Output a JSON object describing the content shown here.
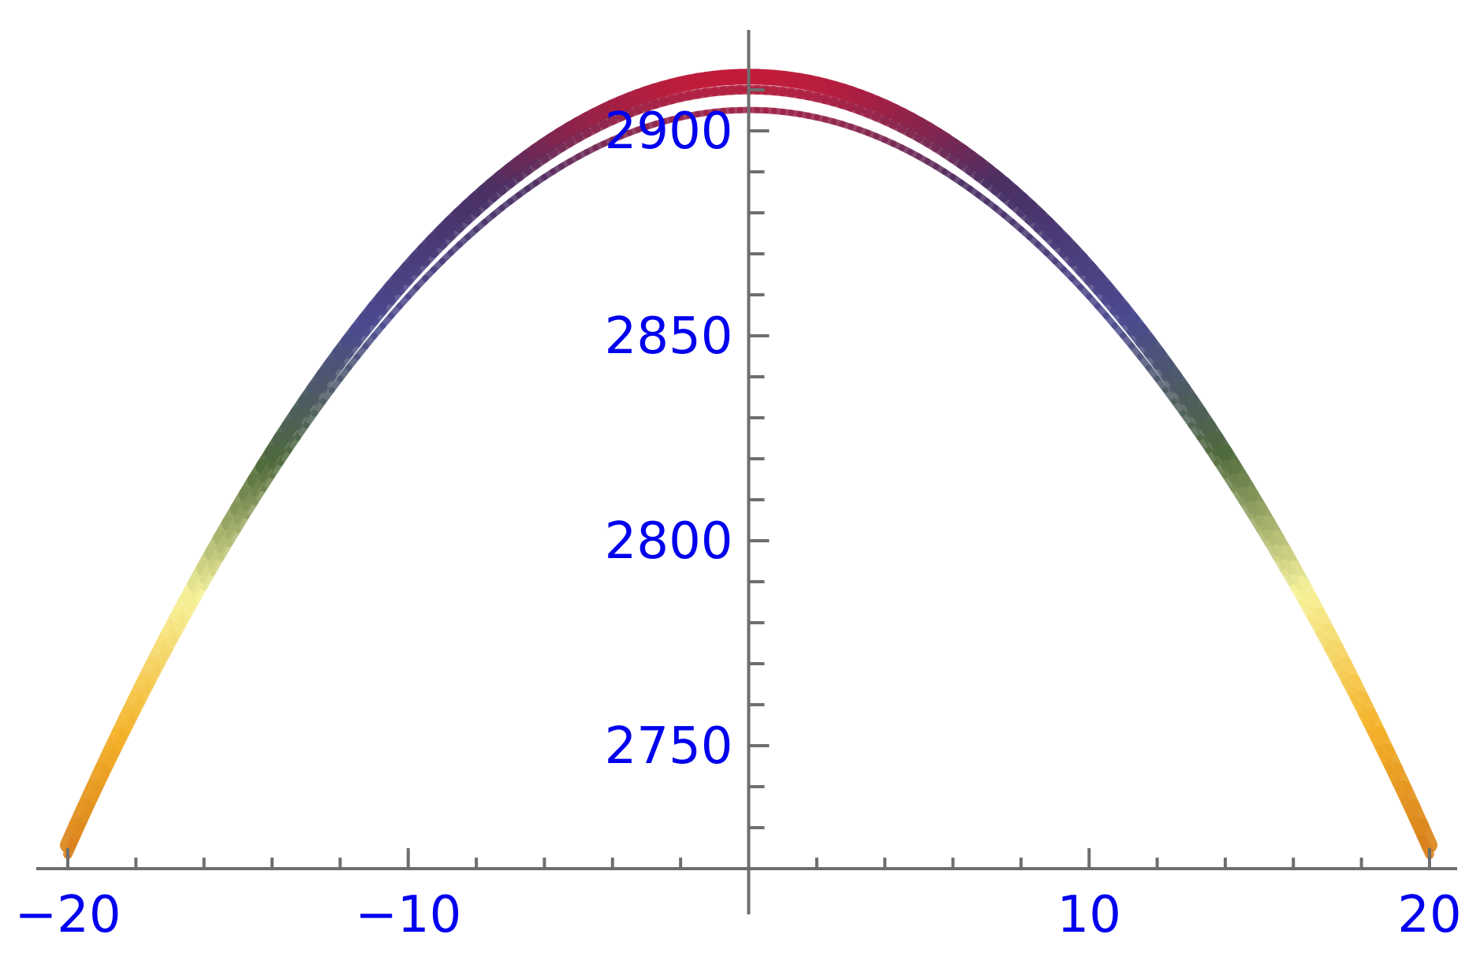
{
  "chart_data": {
    "type": "line",
    "title": "",
    "xlabel": "",
    "ylabel": "",
    "xlim": [
      -20,
      20
    ],
    "ylim": [
      2720,
      2920
    ],
    "x_axis_y": 2720,
    "x_ticks_major": [
      -20,
      -10,
      10,
      20
    ],
    "x_tick_labels": [
      "−20",
      "−10",
      "10",
      "20"
    ],
    "x_ticks_minor_step": 2,
    "y_ticks_major": [
      2750,
      2800,
      2850,
      2900
    ],
    "y_tick_labels": [
      "2750",
      "2800",
      "2850",
      "2900"
    ],
    "y_ticks_minor_step": 10,
    "grid": false,
    "legend": "none",
    "colormap": [
      "#d47a1c",
      "#f4b22a",
      "#f6f29a",
      "#4f6a3c",
      "#4b4a90",
      "#4a2f63",
      "#e0162e"
    ],
    "series": [
      {
        "x": [
          -20,
          -15,
          -10,
          -5,
          0,
          5,
          10,
          15,
          20
        ],
        "y": [
          2724,
          2811,
          2866,
          2902,
          2910,
          2902,
          2866,
          2811,
          2724
        ]
      },
      {
        "x": [
          -20,
          -15,
          -10,
          -5,
          0,
          5,
          10,
          15,
          20
        ],
        "y": [
          2722,
          2808,
          2863,
          2899,
          2907,
          2899,
          2863,
          2808,
          2722
        ]
      },
      {
        "x": [
          -20,
          -15,
          -10,
          -5,
          0,
          5,
          10,
          15,
          20
        ],
        "y": [
          2721,
          2806,
          2860,
          2894,
          2901,
          2894,
          2860,
          2806,
          2721
        ]
      }
    ]
  }
}
